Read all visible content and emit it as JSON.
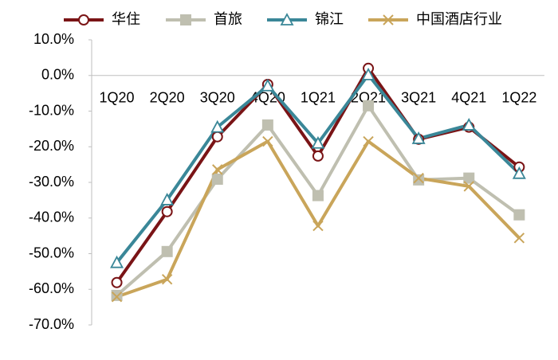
{
  "chart_data": {
    "type": "line",
    "categories": [
      "1Q20",
      "2Q20",
      "3Q20",
      "4Q20",
      "1Q21",
      "2Q21",
      "3Q21",
      "4Q21",
      "1Q22"
    ],
    "series": [
      {
        "name": "华住",
        "color": "#7a1416",
        "marker": "circle",
        "values": [
          -58.1,
          -38.2,
          -17.2,
          -2.5,
          -22.6,
          2.0,
          -17.9,
          -14.5,
          -25.7
        ]
      },
      {
        "name": "首旅",
        "color": "#bfbfb0",
        "marker": "square",
        "values": [
          -61.7,
          -49.4,
          -29.1,
          -13.9,
          -33.7,
          -8.5,
          -29.3,
          -28.8,
          -39.1
        ]
      },
      {
        "name": "锦江",
        "color": "#3a8798",
        "marker": "triangle",
        "values": [
          -52.5,
          -34.9,
          -14.5,
          -2.9,
          -19.0,
          0.2,
          -17.7,
          -13.9,
          -27.5
        ]
      },
      {
        "name": "中国酒店行业",
        "color": "#c9a55a",
        "marker": "cross",
        "values": [
          -62.1,
          -57.2,
          -26.4,
          -18.5,
          -42.2,
          -18.5,
          -28.8,
          -31.1,
          -45.6
        ]
      }
    ],
    "ylim": [
      -70,
      10
    ],
    "yticks": [
      {
        "value": 10,
        "label": "10.0%"
      },
      {
        "value": 0,
        "label": "0.0%"
      },
      {
        "value": -10,
        "label": "-10.0%"
      },
      {
        "value": -20,
        "label": "-20.0%"
      },
      {
        "value": -30,
        "label": "-30.0%"
      },
      {
        "value": -40,
        "label": "-40.0%"
      },
      {
        "value": -50,
        "label": "-50.0%"
      },
      {
        "value": -60,
        "label": "-60.0%"
      },
      {
        "value": -70,
        "label": "-70.0%"
      }
    ]
  }
}
